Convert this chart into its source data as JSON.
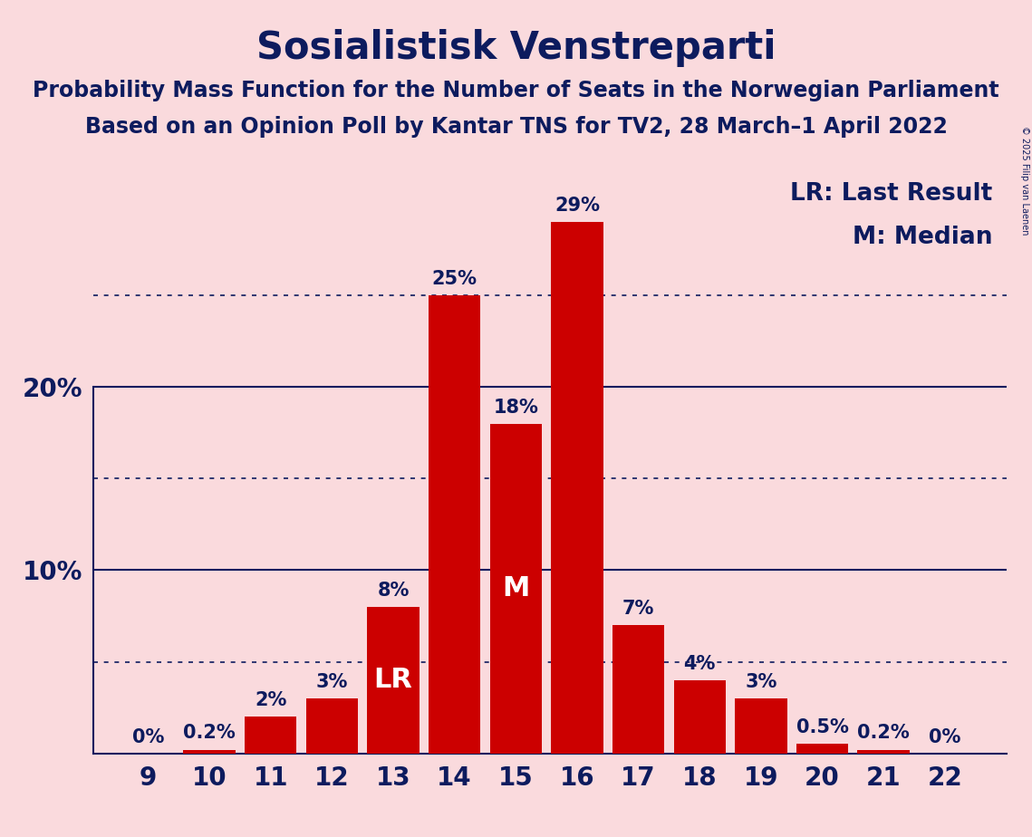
{
  "title": "Sosialistisk Venstreparti",
  "subtitle1": "Probability Mass Function for the Number of Seats in the Norwegian Parliament",
  "subtitle2": "Based on an Opinion Poll by Kantar TNS for TV2, 28 March–1 April 2022",
  "copyright": "© 2025 Filip van Laenen",
  "seats": [
    9,
    10,
    11,
    12,
    13,
    14,
    15,
    16,
    17,
    18,
    19,
    20,
    21,
    22
  ],
  "probabilities": [
    0.0,
    0.2,
    2.0,
    3.0,
    8.0,
    25.0,
    18.0,
    29.0,
    7.0,
    4.0,
    3.0,
    0.5,
    0.2,
    0.0
  ],
  "labels": [
    "0%",
    "0.2%",
    "2%",
    "3%",
    "8%",
    "25%",
    "18%",
    "29%",
    "7%",
    "4%",
    "3%",
    "0.5%",
    "0.2%",
    "0%"
  ],
  "bar_color": "#CC0000",
  "background_color": "#FADADD",
  "text_color": "#0D1B5E",
  "median_seat": 15,
  "lr_seat": 13,
  "ylim": [
    0,
    32
  ],
  "legend_lr": "LR: Last Result",
  "legend_m": "M: Median",
  "title_fontsize": 30,
  "subtitle_fontsize": 17,
  "axis_label_fontsize": 20,
  "bar_label_fontsize": 15,
  "legend_fontsize": 19,
  "inside_label_fontsize": 22
}
